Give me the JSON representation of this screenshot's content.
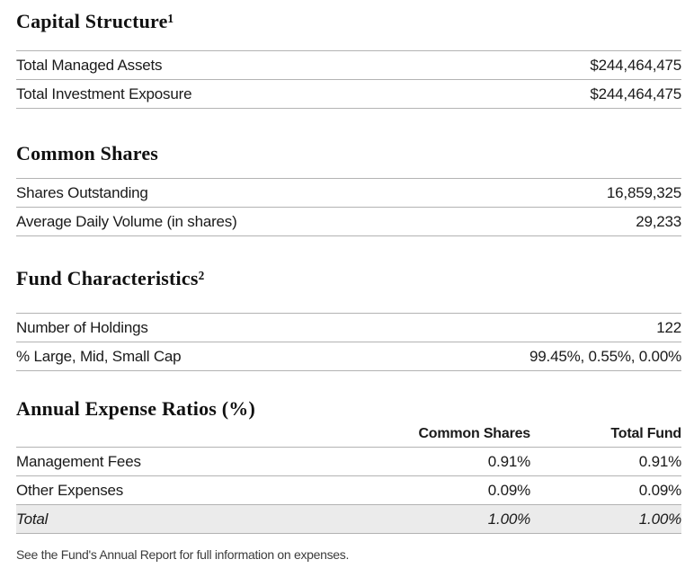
{
  "sections": [
    {
      "title": "Capital Structure¹",
      "rows": [
        {
          "label": "Total Managed Assets",
          "value": "$244,464,475"
        },
        {
          "label": "Total Investment Exposure",
          "value": "$244,464,475"
        }
      ]
    },
    {
      "title": "Common Shares",
      "rows": [
        {
          "label": "Shares Outstanding",
          "value": "16,859,325"
        },
        {
          "label": "Average Daily Volume (in shares)",
          "value": "29,233"
        }
      ]
    },
    {
      "title": "Fund Characteristics²",
      "rows": [
        {
          "label": "Number of Holdings",
          "value": "122"
        },
        {
          "label": "% Large, Mid, Small Cap",
          "value": "99.45%, 0.55%, 0.00%"
        }
      ]
    }
  ],
  "expense": {
    "title": "Annual Expense Ratios (%)",
    "columns": [
      "Common Shares",
      "Total Fund"
    ],
    "rows": [
      {
        "label": "Management Fees",
        "cols": [
          "0.91%",
          "0.91%"
        ]
      },
      {
        "label": "Other Expenses",
        "cols": [
          "0.09%",
          "0.09%"
        ]
      },
      {
        "label": "Total",
        "cols": [
          "1.00%",
          "1.00%"
        ]
      }
    ]
  },
  "footnote": "See the Fund's Annual Report for full information on expenses.",
  "colors": {
    "rule": "#b3b3b3",
    "text": "#1a1a1a",
    "total_row_bg": "#ebebeb",
    "footnote_color": "#3c3c3c"
  }
}
